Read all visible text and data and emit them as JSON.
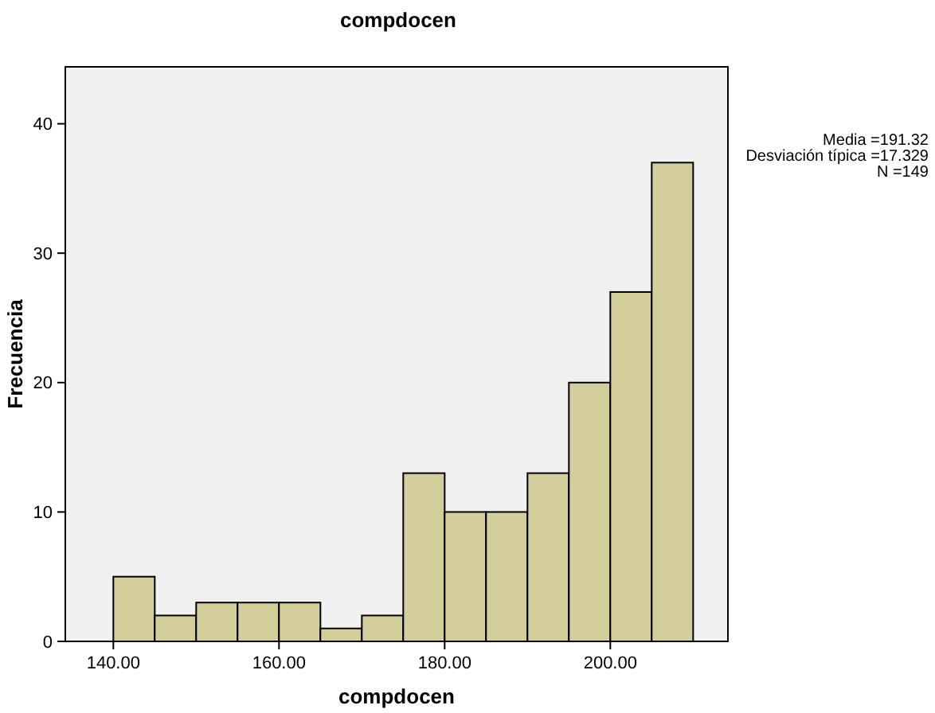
{
  "chart_data": {
    "type": "histogram",
    "title": "compdocen",
    "xlabel": "compdocen",
    "ylabel": "Frecuencia",
    "bins": [
      140,
      145,
      150,
      155,
      160,
      165,
      170,
      175,
      180,
      185,
      190,
      195,
      200,
      205,
      210
    ],
    "values": [
      5,
      2,
      3,
      3,
      3,
      1,
      2,
      13,
      10,
      10,
      13,
      20,
      27,
      37
    ],
    "color": "#d3ce9a",
    "xlim": [
      134.2,
      214.2
    ],
    "xticks": [
      {
        "value": 140,
        "label": "140.00"
      },
      {
        "value": 160,
        "label": "160.00"
      },
      {
        "value": 180,
        "label": "180.00"
      },
      {
        "value": 200,
        "label": "200.00"
      }
    ],
    "ylim": [
      0,
      44.4
    ],
    "yticks": [
      0,
      10,
      20,
      30,
      40
    ],
    "annotations": [
      "Media =191.32",
      "Desviación típica =17.329",
      "N =149"
    ]
  }
}
